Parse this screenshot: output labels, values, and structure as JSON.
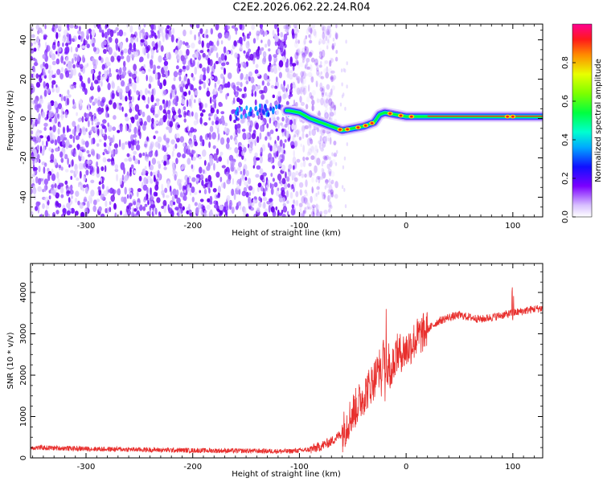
{
  "title": "C2E2.2026.062.22.24.R04",
  "chart_data": [
    {
      "type": "heatmap",
      "xlabel": "Height of straight line (km)",
      "ylabel": "Frequency (Hz)",
      "xlim": [
        -352,
        128
      ],
      "ylim": [
        -50,
        48
      ],
      "x_ticks": [
        -300,
        -200,
        -100,
        0,
        100
      ],
      "x_tick_labels": [
        "-300",
        "-200",
        "-100",
        "0",
        "100"
      ],
      "y_ticks": [
        -40,
        -20,
        0,
        20,
        40
      ],
      "y_tick_labels": [
        "-40",
        "-20",
        "0",
        "20",
        "40"
      ],
      "colorbar": {
        "label": "Normalized spectral amplitude",
        "range": [
          0,
          1
        ],
        "ticks": [
          0.0,
          0.2,
          0.4,
          0.6,
          0.8
        ],
        "tick_labels": [
          "0.0",
          "0.2",
          "0.4",
          "0.6",
          "0.8"
        ]
      },
      "noise_region_x": [
        -352,
        -85
      ],
      "signal_track": {
        "x": [
          -160,
          -145,
          -110,
          -100,
          -90,
          -80,
          -70,
          -60,
          -50,
          -40,
          -30,
          -25,
          -20,
          -10,
          0,
          10,
          30,
          60,
          90,
          110,
          128
        ],
        "y": [
          2,
          4,
          4,
          3,
          0,
          -2,
          -4,
          -6,
          -5,
          -4,
          -2,
          2,
          3,
          2,
          1,
          1,
          1,
          1,
          1,
          1,
          1
        ]
      }
    },
    {
      "type": "line",
      "xlabel": "Height of straight line (km)",
      "ylabel": "SNR (10 * v/v)",
      "xlim": [
        -352,
        128
      ],
      "ylim": [
        0,
        4700
      ],
      "x_ticks": [
        -300,
        -200,
        -100,
        0,
        100
      ],
      "x_tick_labels": [
        "-300",
        "-200",
        "-100",
        "0",
        "100"
      ],
      "y_ticks": [
        0,
        1000,
        2000,
        3000,
        4000
      ],
      "y_tick_labels": [
        "0",
        "1000",
        "2000",
        "3000",
        "4000"
      ],
      "color": "#e8302e",
      "series": [
        {
          "x": [
            -352,
            -330,
            -300,
            -250,
            -200,
            -150,
            -110,
            -90,
            -80,
            -70,
            -60,
            -50,
            -40,
            -30,
            -25,
            -20,
            -15,
            -10,
            0,
            10,
            20,
            30,
            40,
            50,
            60,
            70,
            80,
            90,
            100,
            110,
            120,
            128
          ],
          "y": [
            250,
            240,
            220,
            200,
            180,
            170,
            160,
            200,
            280,
            400,
            600,
            1100,
            1500,
            1900,
            2200,
            2500,
            2000,
            2500,
            2600,
            2900,
            3100,
            3300,
            3400,
            3450,
            3400,
            3350,
            3400,
            3450,
            3500,
            3550,
            3600,
            3620
          ]
        }
      ]
    }
  ]
}
